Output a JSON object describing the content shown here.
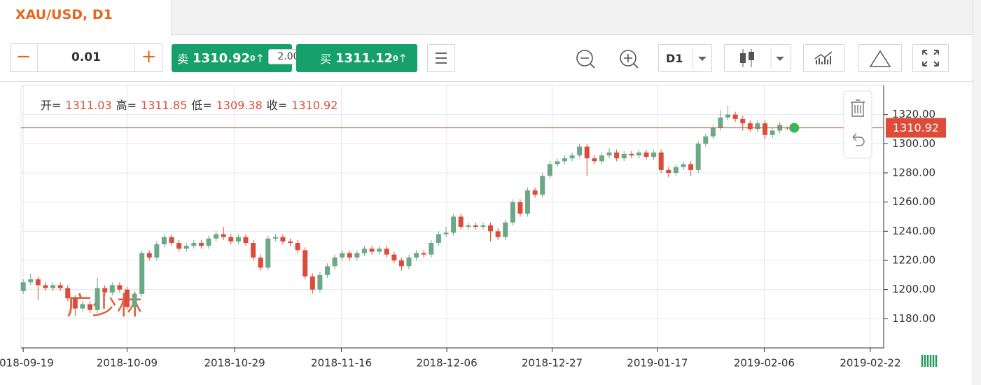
{
  "tab": {
    "title": "XAU/USD, D1"
  },
  "toolbar": {
    "lot": "0.01",
    "sell_label": "卖",
    "sell_price": "1310.92",
    "sell_pip": "0",
    "spread": "2.00",
    "buy_label": "买",
    "buy_price": "1311.12",
    "buy_pip": "0",
    "timeframe": "D1"
  },
  "watermark": "广少林",
  "chart_data": {
    "type": "candlestick",
    "ohlc_labels": [
      "开=",
      "高=",
      "低=",
      "收="
    ],
    "open": [
      1199,
      1205,
      1207,
      1203,
      1201,
      1203,
      1201,
      1194,
      1187,
      1190,
      1186,
      1201,
      1198,
      1203,
      1200,
      1188,
      1197,
      1225,
      1222,
      1231,
      1236,
      1232,
      1228,
      1230,
      1232,
      1230,
      1235,
      1238,
      1236,
      1233,
      1236,
      1232,
      1222,
      1215,
      1235,
      1236,
      1233,
      1232,
      1227,
      1209,
      1200,
      1210,
      1216,
      1222,
      1225,
      1222,
      1225,
      1228,
      1226,
      1228,
      1224,
      1220,
      1216,
      1222,
      1225,
      1224,
      1232,
      1238,
      1239,
      1250,
      1243,
      1244,
      1243,
      1244,
      1240,
      1236,
      1246,
      1260,
      1252,
      1268,
      1265,
      1278,
      1286,
      1288,
      1290,
      1292,
      1298,
      1290,
      1288,
      1292,
      1294,
      1290,
      1293,
      1292,
      1294,
      1291,
      1294,
      1282,
      1280,
      1284,
      1286,
      1282,
      1300,
      1305,
      1311,
      1318,
      1320,
      1317,
      1314,
      1310,
      1314,
      1306,
      1309,
      1311.03
    ],
    "high": [
      1207,
      1211,
      1209,
      1205,
      1205,
      1205,
      1203,
      1196,
      1192,
      1192,
      1208,
      1203,
      1205,
      1205,
      1202,
      1199,
      1227,
      1227,
      1233,
      1238,
      1238,
      1234,
      1232,
      1234,
      1234,
      1237,
      1240,
      1243,
      1238,
      1238,
      1238,
      1234,
      1224,
      1237,
      1238,
      1238,
      1235,
      1234,
      1229,
      1211,
      1212,
      1218,
      1224,
      1227,
      1227,
      1227,
      1230,
      1230,
      1230,
      1230,
      1226,
      1222,
      1224,
      1227,
      1227,
      1234,
      1240,
      1243,
      1252,
      1252,
      1246,
      1246,
      1246,
      1246,
      1242,
      1248,
      1262,
      1262,
      1270,
      1270,
      1280,
      1288,
      1290,
      1292,
      1294,
      1300,
      1300,
      1292,
      1294,
      1297,
      1296,
      1295,
      1295,
      1296,
      1296,
      1296,
      1296,
      1284,
      1286,
      1288,
      1288,
      1302,
      1307,
      1313,
      1323,
      1326,
      1322,
      1319,
      1316,
      1316,
      1316,
      1311,
      1315,
      1311.85
    ],
    "low": [
      1197,
      1203,
      1193,
      1199,
      1199,
      1199,
      1192,
      1182,
      1185,
      1184,
      1184,
      1196,
      1196,
      1198,
      1186,
      1186,
      1195,
      1220,
      1220,
      1229,
      1230,
      1226,
      1226,
      1228,
      1228,
      1228,
      1233,
      1234,
      1231,
      1231,
      1230,
      1220,
      1213,
      1213,
      1233,
      1231,
      1230,
      1225,
      1207,
      1197,
      1198,
      1208,
      1214,
      1220,
      1220,
      1220,
      1223,
      1224,
      1224,
      1222,
      1218,
      1213,
      1214,
      1220,
      1222,
      1222,
      1230,
      1236,
      1237,
      1241,
      1241,
      1241,
      1241,
      1233,
      1234,
      1234,
      1244,
      1250,
      1250,
      1263,
      1263,
      1276,
      1284,
      1286,
      1288,
      1290,
      1278,
      1286,
      1286,
      1290,
      1288,
      1288,
      1290,
      1290,
      1289,
      1289,
      1280,
      1277,
      1278,
      1282,
      1278,
      1280,
      1298,
      1303,
      1309,
      1316,
      1315,
      1309,
      1308,
      1308,
      1303,
      1304,
      1307,
      1309.38
    ],
    "close": [
      1205,
      1207,
      1203,
      1201,
      1203,
      1201,
      1194,
      1187,
      1190,
      1186,
      1201,
      1198,
      1203,
      1200,
      1188,
      1197,
      1225,
      1222,
      1231,
      1236,
      1232,
      1228,
      1230,
      1232,
      1230,
      1235,
      1238,
      1236,
      1233,
      1236,
      1232,
      1222,
      1215,
      1235,
      1236,
      1233,
      1232,
      1227,
      1209,
      1200,
      1210,
      1216,
      1222,
      1225,
      1222,
      1225,
      1228,
      1226,
      1228,
      1224,
      1220,
      1216,
      1222,
      1225,
      1224,
      1232,
      1238,
      1239,
      1250,
      1243,
      1244,
      1243,
      1244,
      1240,
      1236,
      1246,
      1260,
      1252,
      1268,
      1265,
      1278,
      1286,
      1288,
      1290,
      1292,
      1298,
      1290,
      1288,
      1292,
      1294,
      1290,
      1293,
      1292,
      1294,
      1291,
      1294,
      1282,
      1280,
      1284,
      1286,
      1282,
      1300,
      1305,
      1311,
      1318,
      1320,
      1317,
      1314,
      1310,
      1314,
      1306,
      1309,
      1313,
      1310.92
    ],
    "up_color": "#6aa886",
    "down_color": "#dc4c3a",
    "last_price_color": "#dc4c3a",
    "xlim": [
      -0.3,
      116
    ],
    "xticks": [
      {
        "value": 0,
        "label": "2018-09-19"
      },
      {
        "value": 14,
        "label": "2018-10-09"
      },
      {
        "value": 28.5,
        "label": "2018-10-29"
      },
      {
        "value": 42.9,
        "label": "2018-11-16"
      },
      {
        "value": 57.1,
        "label": "2018-12-06"
      },
      {
        "value": 71.3,
        "label": "2018-12-27"
      },
      {
        "value": 85.5,
        "label": "2019-01-17"
      },
      {
        "value": 99.9,
        "label": "2019-02-06"
      },
      {
        "value": 114.2,
        "label": "2019-02-22"
      }
    ],
    "ylim": [
      1160,
      1340
    ],
    "yticks": [
      {
        "value": 1180,
        "label": "1180.00"
      },
      {
        "value": 1200,
        "label": "1200.00"
      },
      {
        "value": 1220,
        "label": "1220.00"
      },
      {
        "value": 1240,
        "label": "1240.00"
      },
      {
        "value": 1260,
        "label": "1260.00"
      },
      {
        "value": 1280,
        "label": "1280.00"
      },
      {
        "value": 1300,
        "label": "1300.00"
      },
      {
        "value": 1320,
        "label": "1320.00"
      }
    ],
    "grid": true
  }
}
